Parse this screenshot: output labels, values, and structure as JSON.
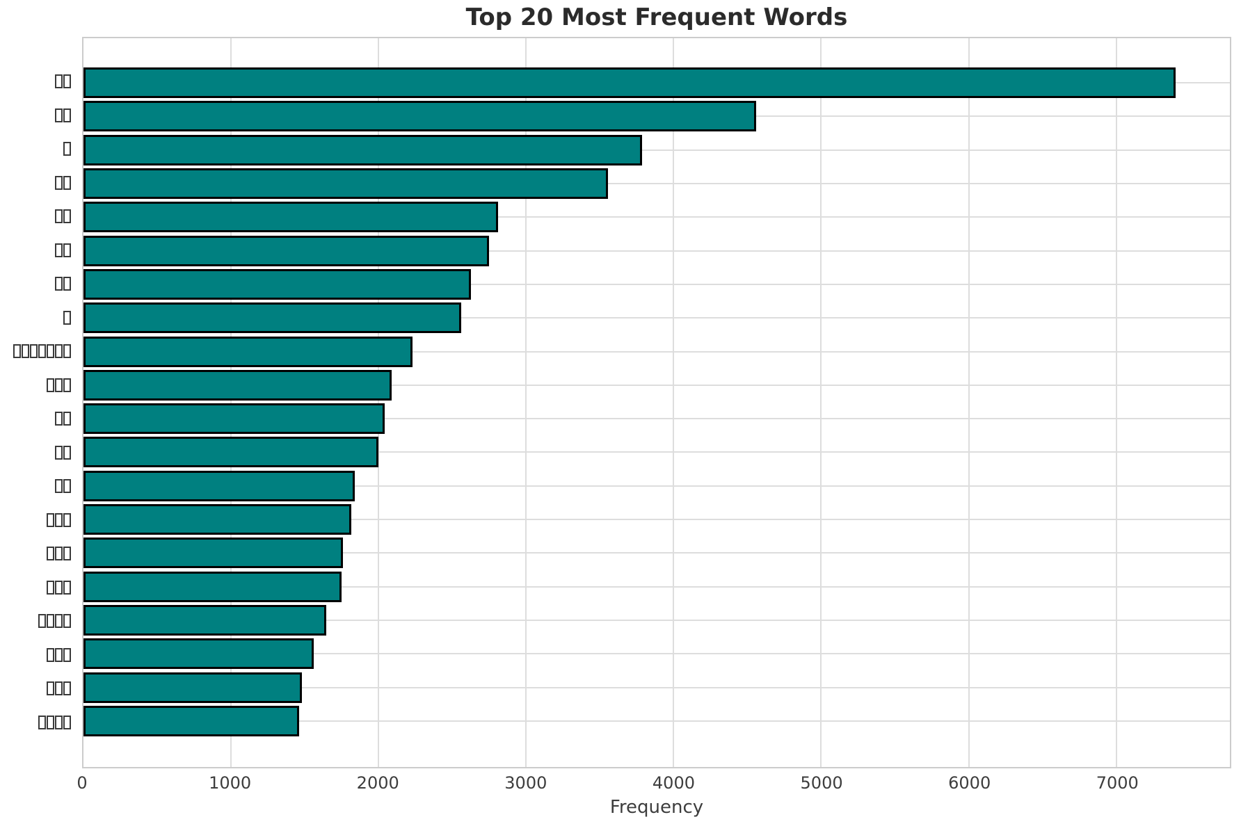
{
  "chart_data": {
    "type": "bar",
    "orientation": "horizontal",
    "title": "Top 20 Most Frequent Words",
    "xlabel": "Frequency",
    "ylabel": "",
    "xlim": [
      0,
      7770
    ],
    "xticks": [
      0,
      1000,
      2000,
      3000,
      4000,
      5000,
      6000,
      7000
    ],
    "grid": true,
    "legend": false,
    "categories": [
      "□□",
      "□□",
      "□",
      "□□",
      "□□",
      "□□",
      "□□",
      "□",
      "□□□□□□□",
      "□□□",
      "□□",
      "□□",
      "□□",
      "□□□",
      "□□□",
      "□□□",
      "□□□□",
      "□□□",
      "□□□",
      "□□□□"
    ],
    "values": [
      7400,
      4560,
      3785,
      3555,
      2810,
      2750,
      2625,
      2560,
      2230,
      2090,
      2040,
      2000,
      1840,
      1815,
      1760,
      1750,
      1645,
      1560,
      1480,
      1460
    ],
    "colors": {
      "bar_fill": "#008080",
      "bar_edge": "#000000",
      "grid": "#dddddd",
      "spine": "#cccccc",
      "title_text": "#2b2b2b",
      "tick_text": "#3d3d3d",
      "background": "#ffffff"
    }
  }
}
